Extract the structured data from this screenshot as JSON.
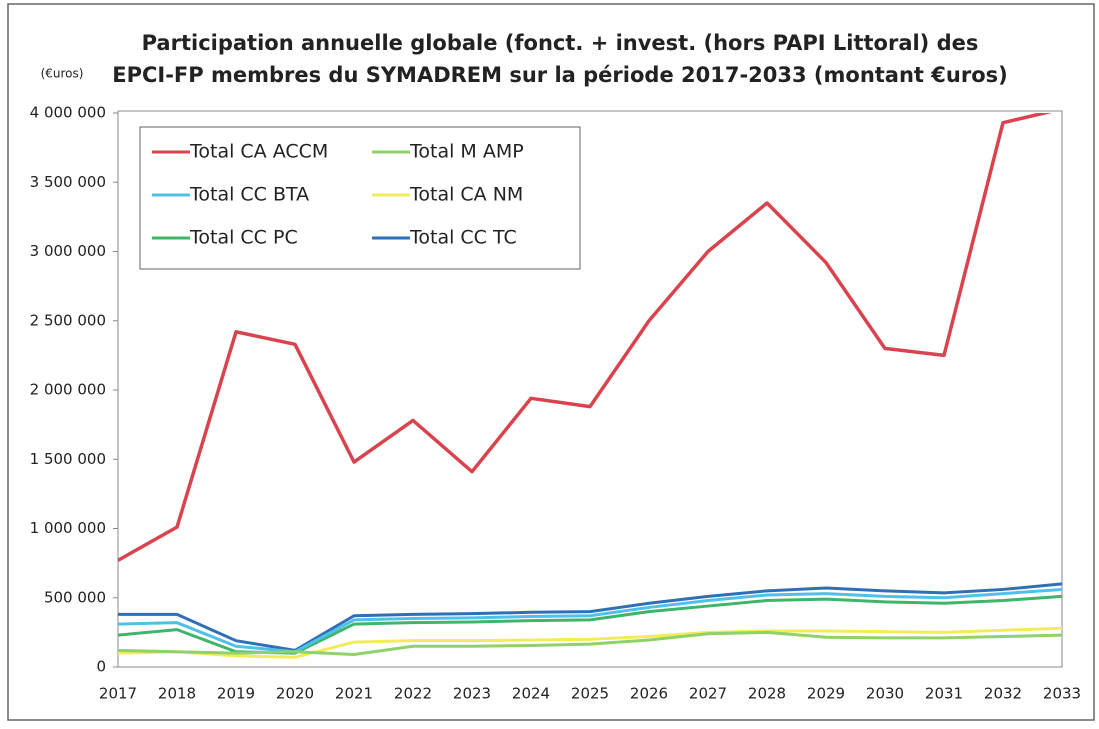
{
  "chart_data": {
    "type": "line",
    "title": [
      "Participation annuelle globale (fonct. + invest. (hors PAPI Littoral) des",
      "EPCI-FP membres du SYMADREM sur la période 2017-2033 (montant €uros)"
    ],
    "y_label": "(€uros)",
    "categories": [
      "2017",
      "2018",
      "2019",
      "2020",
      "2021",
      "2022",
      "2023",
      "2024",
      "2025",
      "2026",
      "2027",
      "2028",
      "2029",
      "2030",
      "2031",
      "2032",
      "2033"
    ],
    "series": [
      {
        "name": "Total CA ACCM",
        "color": "#d9434e",
        "values": [
          770000,
          1010000,
          2420000,
          2330000,
          1480000,
          1780000,
          1410000,
          1940000,
          1880000,
          2500000,
          3000000,
          3350000,
          2920000,
          2300000,
          2250000,
          3930000,
          4030000
        ]
      },
      {
        "name": "Total M AMP",
        "color": "#8fd16a",
        "values": [
          120000,
          110000,
          100000,
          110000,
          90000,
          150000,
          150000,
          155000,
          165000,
          195000,
          240000,
          250000,
          215000,
          210000,
          210000,
          220000,
          230000
        ]
      },
      {
        "name": "Total CC BTA",
        "color": "#4fc1e8",
        "values": [
          310000,
          320000,
          150000,
          110000,
          340000,
          350000,
          355000,
          365000,
          370000,
          430000,
          480000,
          520000,
          530000,
          510000,
          500000,
          530000,
          560000
        ]
      },
      {
        "name": "Total CA NM",
        "color": "#f2ec5a",
        "values": [
          100000,
          110000,
          80000,
          70000,
          180000,
          190000,
          190000,
          195000,
          200000,
          220000,
          250000,
          260000,
          260000,
          255000,
          250000,
          265000,
          280000
        ]
      },
      {
        "name": "Total CC PC",
        "color": "#3fb46a",
        "values": [
          230000,
          270000,
          110000,
          100000,
          310000,
          320000,
          325000,
          335000,
          340000,
          400000,
          440000,
          480000,
          490000,
          470000,
          460000,
          480000,
          510000
        ]
      },
      {
        "name": "Total CC TC",
        "color": "#2f6fb5",
        "values": [
          380000,
          380000,
          190000,
          120000,
          370000,
          380000,
          385000,
          395000,
          400000,
          460000,
          510000,
          550000,
          570000,
          550000,
          535000,
          560000,
          600000
        ]
      }
    ],
    "ylim": [
      0,
      4000000
    ],
    "yticks": [
      0,
      {
        "value": 500000,
        "label": "500 000"
      },
      {
        "value": 1000000,
        "label": "1 000 000"
      },
      {
        "value": 1500000,
        "label": "1 500 000"
      },
      {
        "value": 2000000,
        "label": "2 000 000"
      },
      {
        "value": 2500000,
        "label": "2 500 000"
      },
      {
        "value": 3000000,
        "label": "3 000 000"
      },
      {
        "value": 3500000,
        "label": "3 500 000"
      },
      {
        "value": 4000000,
        "label": "4 000 000"
      }
    ],
    "grid": false,
    "legend": "upper left"
  }
}
